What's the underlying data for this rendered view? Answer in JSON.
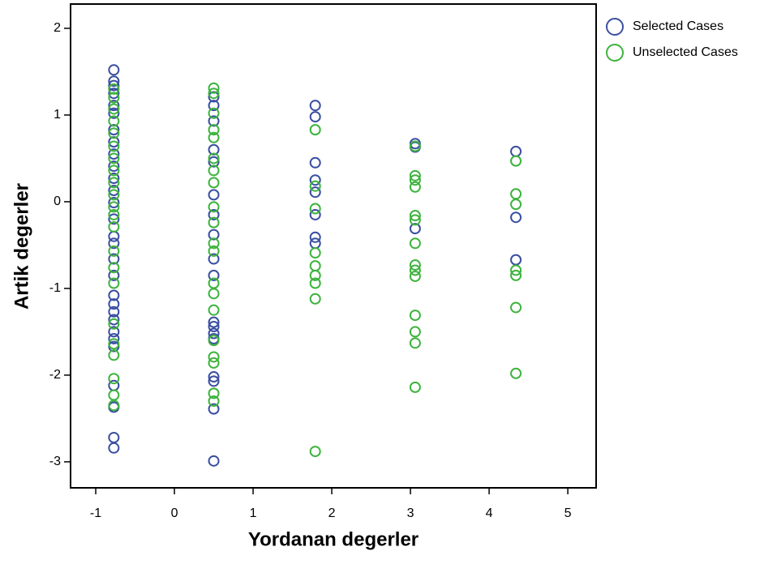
{
  "chart_data": {
    "type": "scatter",
    "x_label": "Yordanan degerler",
    "y_label": "Artik degerler",
    "xlim": [
      -1.32,
      5.36
    ],
    "ylim": [
      -3.3,
      2.28
    ],
    "xticks": [
      -1,
      0,
      1,
      2,
      3,
      4,
      5
    ],
    "yticks": [
      -3,
      -2,
      -1,
      0,
      1,
      2
    ],
    "series": [
      {
        "name": "Selected Cases",
        "color": "#3a4fa0",
        "x": [
          -0.77,
          -0.77,
          -0.77,
          -0.77,
          -0.77,
          -0.77,
          -0.77,
          -0.77,
          -0.77,
          -0.77,
          -0.77,
          -0.77,
          -0.77,
          -0.77,
          -0.77,
          -0.77,
          -0.77,
          -0.77,
          -0.77,
          -0.77,
          -0.77,
          -0.77,
          -0.77,
          -0.77,
          -0.77,
          -0.77,
          -0.77,
          -0.77,
          -0.77,
          0.5,
          0.5,
          0.5,
          0.5,
          0.5,
          0.5,
          0.5,
          0.5,
          0.5,
          0.5,
          0.5,
          0.5,
          0.5,
          0.5,
          0.5,
          0.5,
          0.5,
          0.5,
          1.79,
          1.79,
          1.79,
          1.79,
          1.79,
          1.79,
          1.79,
          1.79,
          3.06,
          3.06,
          3.06,
          4.34,
          4.34,
          4.34
        ],
        "values": [
          1.52,
          1.39,
          1.34,
          1.25,
          1.11,
          1.02,
          0.83,
          0.69,
          0.55,
          0.41,
          0.27,
          0.13,
          -0.01,
          -0.2,
          -0.4,
          -0.48,
          -0.66,
          -0.85,
          -1.08,
          -1.18,
          -1.27,
          -1.36,
          -1.5,
          -1.58,
          -1.67,
          -2.12,
          -2.37,
          -2.72,
          -2.84,
          1.21,
          1.11,
          0.93,
          0.6,
          0.46,
          0.08,
          -0.15,
          -0.38,
          -0.66,
          -0.85,
          -1.39,
          -1.44,
          -1.52,
          -1.58,
          -2.02,
          -2.07,
          -2.39,
          -2.99,
          1.11,
          0.98,
          0.45,
          0.25,
          0.11,
          -0.15,
          -0.41,
          -0.48,
          0.67,
          0.63,
          -0.31,
          0.58,
          -0.18,
          -0.67
        ]
      },
      {
        "name": "Unselected Cases",
        "color": "#3db33d",
        "x": [
          -0.77,
          -0.77,
          -0.77,
          -0.77,
          -0.77,
          -0.77,
          -0.77,
          -0.77,
          -0.77,
          -0.77,
          -0.77,
          -0.77,
          -0.77,
          -0.77,
          -0.77,
          -0.77,
          -0.77,
          -0.77,
          -0.77,
          -0.77,
          -0.77,
          -0.77,
          0.5,
          0.5,
          0.5,
          0.5,
          0.5,
          0.5,
          0.5,
          0.5,
          0.5,
          0.5,
          0.5,
          0.5,
          0.5,
          0.5,
          0.5,
          0.5,
          0.5,
          0.5,
          0.5,
          0.5,
          1.79,
          1.79,
          1.79,
          1.79,
          1.79,
          1.79,
          1.79,
          1.79,
          1.79,
          3.06,
          3.06,
          3.06,
          3.06,
          3.06,
          3.06,
          3.06,
          3.06,
          3.06,
          3.06,
          3.06,
          3.06,
          3.06,
          3.06,
          4.34,
          4.34,
          4.34,
          4.34,
          4.34,
          4.34,
          4.34
        ],
        "values": [
          1.3,
          1.2,
          1.07,
          0.93,
          0.79,
          0.64,
          0.5,
          0.36,
          0.22,
          0.08,
          -0.06,
          -0.15,
          -0.29,
          -0.57,
          -0.76,
          -0.94,
          -1.41,
          -1.64,
          -1.77,
          -2.04,
          -2.23,
          -2.35,
          1.31,
          1.25,
          1.02,
          0.83,
          0.74,
          0.5,
          0.36,
          0.22,
          -0.06,
          -0.24,
          -0.48,
          -0.57,
          -0.94,
          -1.06,
          -1.25,
          -1.6,
          -1.79,
          -1.86,
          -2.21,
          -2.3,
          0.83,
          0.18,
          -0.08,
          -0.59,
          -0.74,
          -0.85,
          -0.94,
          -1.12,
          -2.88,
          0.64,
          0.3,
          0.25,
          0.17,
          -0.16,
          -0.21,
          -0.48,
          -0.73,
          -0.79,
          -0.86,
          -1.31,
          -1.5,
          -1.63,
          -2.14,
          0.47,
          0.09,
          -0.03,
          -0.79,
          -0.85,
          -1.22,
          -1.98
        ]
      }
    ]
  }
}
